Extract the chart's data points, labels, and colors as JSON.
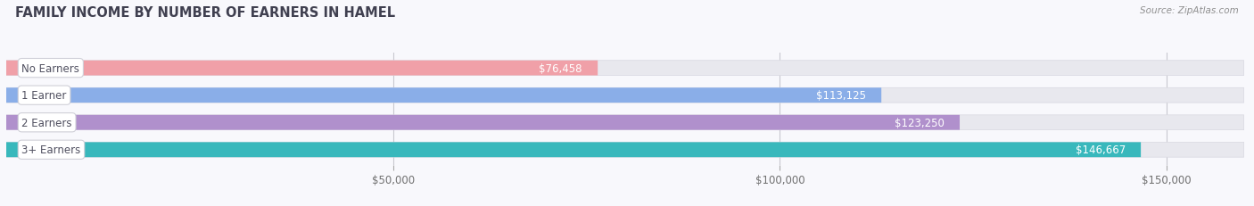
{
  "title": "FAMILY INCOME BY NUMBER OF EARNERS IN HAMEL",
  "source": "Source: ZipAtlas.com",
  "categories": [
    "No Earners",
    "1 Earner",
    "2 Earners",
    "3+ Earners"
  ],
  "values": [
    76458,
    113125,
    123250,
    146667
  ],
  "labels": [
    "$76,458",
    "$113,125",
    "$123,250",
    "$146,667"
  ],
  "bar_colors": [
    "#f0a0a8",
    "#8aaee8",
    "#b090cc",
    "#38b8bc"
  ],
  "track_color": "#e8e8ee",
  "track_edge_color": "#d8d8e0",
  "bg_color": "#f8f8fc",
  "row_bg_color": "#f8f8fc",
  "title_color": "#404050",
  "source_color": "#909090",
  "tick_label_color": "#707070",
  "value_label_color": "#ffffff",
  "cat_label_color": "#505060",
  "xmin": 0,
  "xmax": 160000,
  "xticks": [
    50000,
    100000,
    150000
  ],
  "xtick_labels": [
    "$50,000",
    "$100,000",
    "$150,000"
  ],
  "bar_height": 0.55,
  "figsize": [
    14.06,
    2.32
  ],
  "dpi": 100
}
